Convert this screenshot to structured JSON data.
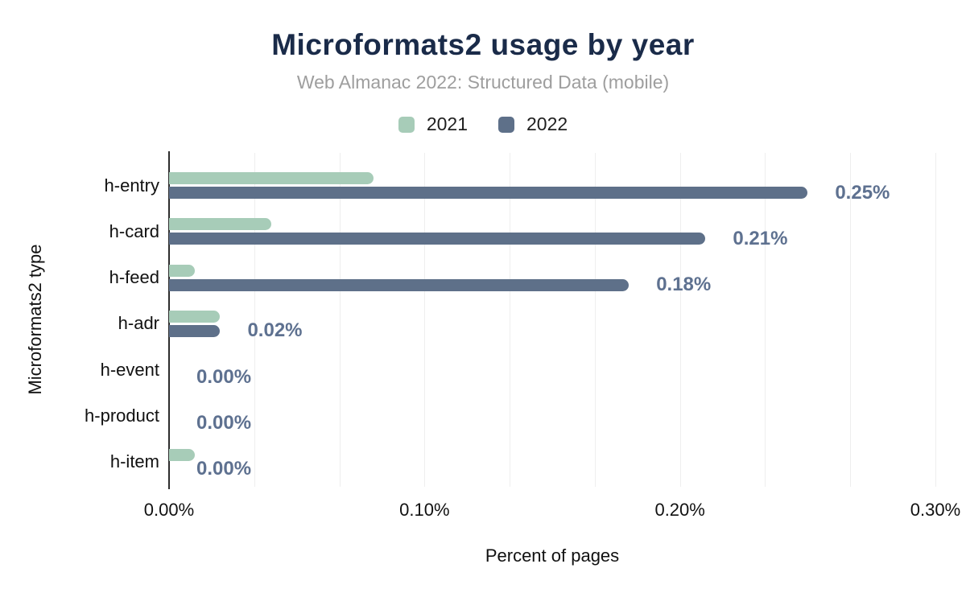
{
  "header": {
    "title": "Microformats2 usage by year",
    "subtitle": "Web Almanac 2022: Structured Data (mobile)"
  },
  "legend": {
    "items": [
      {
        "label": "2021",
        "color": "#a7ccb8"
      },
      {
        "label": "2022",
        "color": "#5e7089"
      }
    ]
  },
  "chart_data": {
    "type": "bar",
    "orientation": "horizontal",
    "title": "Microformats2 usage by year",
    "subtitle": "Web Almanac 2022: Structured Data (mobile)",
    "categories": [
      "h-entry",
      "h-card",
      "h-feed",
      "h-adr",
      "h-event",
      "h-product",
      "h-item"
    ],
    "series": [
      {
        "name": "2021",
        "color": "#a7ccb8",
        "values": [
          0.08,
          0.04,
          0.01,
          0.02,
          0.0,
          0.0,
          0.01
        ]
      },
      {
        "name": "2022",
        "color": "#5e7089",
        "values": [
          0.25,
          0.21,
          0.18,
          0.02,
          0.0,
          0.0,
          0.0
        ]
      }
    ],
    "data_labels": [
      "0.25%",
      "0.21%",
      "0.18%",
      "0.02%",
      "0.00%",
      "0.00%",
      "0.00%"
    ],
    "data_label_series": "2022",
    "xlabel": "Percent of pages",
    "ylabel": "Microformats2 type",
    "x_ticks": [
      "0.00%",
      "0.10%",
      "0.20%",
      "0.30%"
    ],
    "x_tick_values": [
      0,
      0.1,
      0.2,
      0.3
    ],
    "xlim": [
      0,
      0.3
    ],
    "grid": "vertical minor gridlines every 0.0333%, legend top center"
  },
  "colors": {
    "title": "#1a2b49",
    "subtitle": "#9e9e9e",
    "bar_2021": "#a7ccb8",
    "bar_2022": "#5e7089",
    "value_label": "#5e7190",
    "gridline": "#eeeeee",
    "axis_line": "#2e2e2e"
  }
}
